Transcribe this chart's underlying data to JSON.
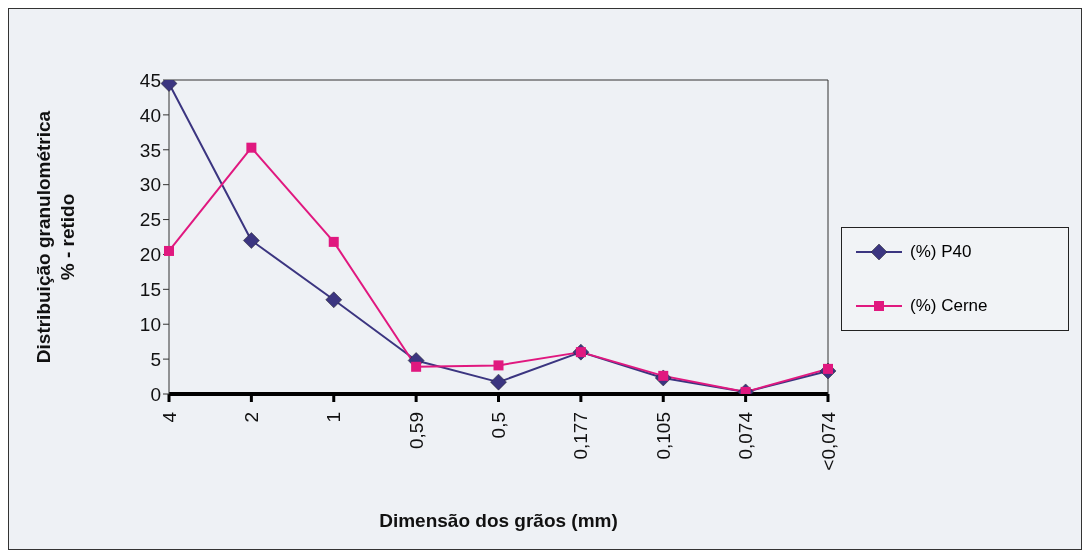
{
  "chart_data": {
    "type": "line",
    "xlabel": "Dimensão dos grãos (mm)",
    "ylabel": "Distribuição granulométrica\n% - retido",
    "categories": [
      "4",
      "2",
      "1",
      "0,59",
      "0,5",
      "0,177",
      "0,105",
      "0,074",
      "<0,074"
    ],
    "series": [
      {
        "name": "(%) P40",
        "color": "#3b3580",
        "marker": "diamond",
        "values": [
          44.5,
          22,
          13.5,
          4.8,
          1.7,
          6,
          2.3,
          0.3,
          3.3
        ]
      },
      {
        "name": "(%) Cerne",
        "color": "#e0187f",
        "marker": "square",
        "values": [
          20.5,
          35.3,
          21.8,
          3.9,
          4.1,
          6,
          2.6,
          0.3,
          3.6
        ]
      }
    ],
    "ylim": [
      0,
      45
    ],
    "yticks": [
      0,
      5,
      10,
      15,
      20,
      25,
      30,
      35,
      40,
      45
    ],
    "grid": false,
    "legend": "right",
    "line_style": "solid"
  }
}
